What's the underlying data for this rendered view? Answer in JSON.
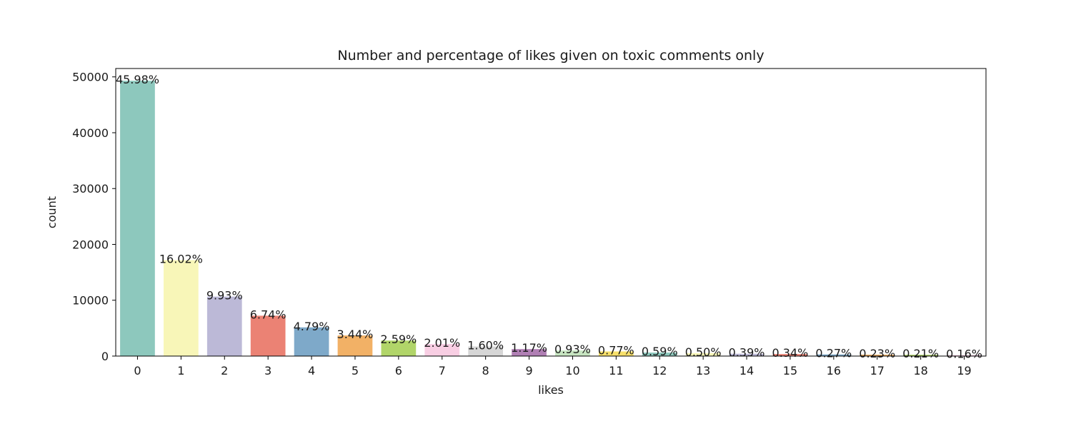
{
  "chart_data": {
    "type": "bar",
    "title": "Number and percentage of likes given on toxic comments only",
    "xlabel": "likes",
    "ylabel": "count",
    "categories": [
      "0",
      "1",
      "2",
      "3",
      "4",
      "5",
      "6",
      "7",
      "8",
      "9",
      "10",
      "11",
      "12",
      "13",
      "14",
      "15",
      "16",
      "17",
      "18",
      "19"
    ],
    "values": [
      49300,
      17180,
      10650,
      7230,
      5140,
      3690,
      2780,
      2160,
      1720,
      1250,
      1000,
      830,
      630,
      540,
      420,
      360,
      290,
      250,
      230,
      170
    ],
    "data_labels": [
      "45.98%",
      "16.02%",
      "9.93%",
      "6.74%",
      "4.79%",
      "3.44%",
      "2.59%",
      "2.01%",
      "1.60%",
      "1.17%",
      "0.93%",
      "0.77%",
      "0.59%",
      "0.50%",
      "0.39%",
      "0.34%",
      "0.27%",
      "0.23%",
      "0.21%",
      "0.16%"
    ],
    "colors": [
      "#8dc8bd",
      "#f8f6b8",
      "#bcb9d7",
      "#eb8274",
      "#7ea9c9",
      "#f2b166",
      "#b1d569",
      "#f8cee3",
      "#d6d6d6",
      "#b07fb4",
      "#c7e5c1",
      "#f7e06b",
      "#8dc8bd",
      "#f8f6b8",
      "#bcb9d7",
      "#eb8274",
      "#7ea9c9",
      "#f2b166",
      "#b1d569",
      "#f8cee3"
    ],
    "yticks": [
      0,
      10000,
      20000,
      30000,
      40000,
      50000
    ],
    "ylim": [
      0,
      51500
    ],
    "grid": false,
    "legend": false
  }
}
